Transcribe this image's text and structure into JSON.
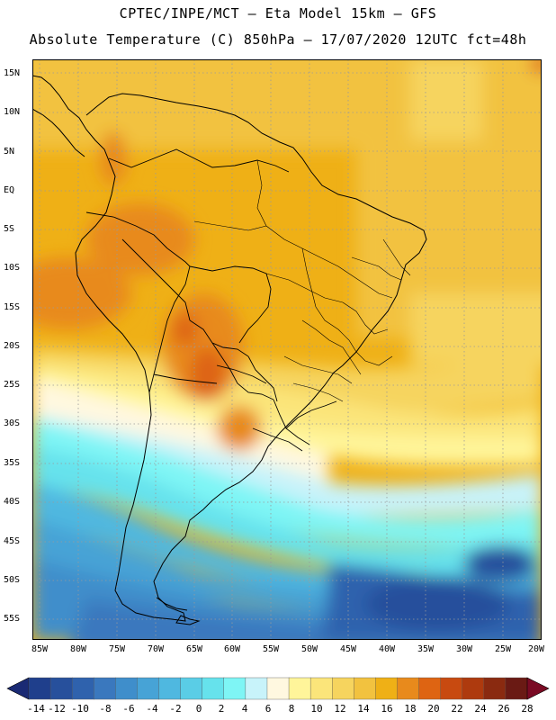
{
  "title": {
    "line1": "CPTEC/INPE/MCT –  Eta Model 15km – GFS",
    "line2": "Absolute Temperature (C) 850hPa – 17/07/2020 12UTC fct=48h"
  },
  "map": {
    "lat_labels": [
      "15N",
      "10N",
      "5N",
      "EQ",
      "5S",
      "10S",
      "15S",
      "20S",
      "25S",
      "30S",
      "35S",
      "40S",
      "45S",
      "50S",
      "55S"
    ],
    "lon_labels": [
      "85W",
      "80W",
      "75W",
      "70W",
      "65W",
      "60W",
      "55W",
      "50W",
      "45W",
      "40W",
      "35W",
      "30W",
      "25W",
      "20W"
    ]
  },
  "colorbar": {
    "labels": [
      "-14",
      "-12",
      "-10",
      "-8",
      "-6",
      "-4",
      "-2",
      "0",
      "2",
      "4",
      "6",
      "8",
      "10",
      "12",
      "14",
      "16",
      "18",
      "20",
      "22",
      "24",
      "26",
      "28"
    ],
    "colors": [
      "#1f3f8c",
      "#27509c",
      "#2f62ad",
      "#3a78be",
      "#3f8ecb",
      "#47a3d6",
      "#4fb8e0",
      "#5acde6",
      "#66e2ec",
      "#7ef5f5",
      "#c8f3fa",
      "#fff8e0",
      "#fff59a",
      "#fbe57a",
      "#f6d45e",
      "#f2c23f",
      "#efb016",
      "#e88a1c",
      "#de6412",
      "#c84a10",
      "#ae3a0e",
      "#8a2a10",
      "#6a1a14"
    ],
    "under_color": "#1a2a74",
    "over_color": "#7a0a24"
  }
}
